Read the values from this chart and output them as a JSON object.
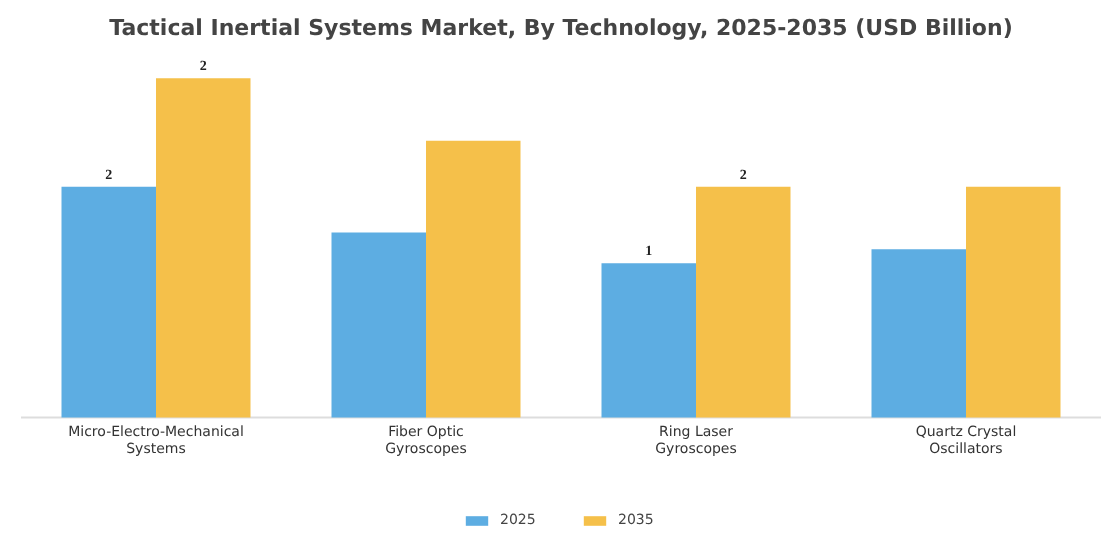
{
  "chart_data": {
    "type": "bar",
    "title": "Tactical Inertial Systems Market, By Technology, 2025-2035 (USD Billion)",
    "categories": [
      "Micro-Electro-Mechanical Systems",
      "Fiber Optic Gyroscopes",
      "Ring Laser Gyroscopes",
      "Quartz Crystal Oscillators"
    ],
    "series": [
      {
        "name": "2025",
        "color": "#5dade2",
        "values": [
          1.66,
          1.33,
          1.11,
          1.21
        ],
        "value_labels": [
          "2",
          null,
          "1",
          null
        ]
      },
      {
        "name": "2035",
        "color": "#f5c04a",
        "values": [
          2.44,
          1.99,
          1.66,
          1.66
        ],
        "value_labels": [
          "2",
          null,
          "2",
          null
        ]
      }
    ],
    "legend": "bottom"
  }
}
